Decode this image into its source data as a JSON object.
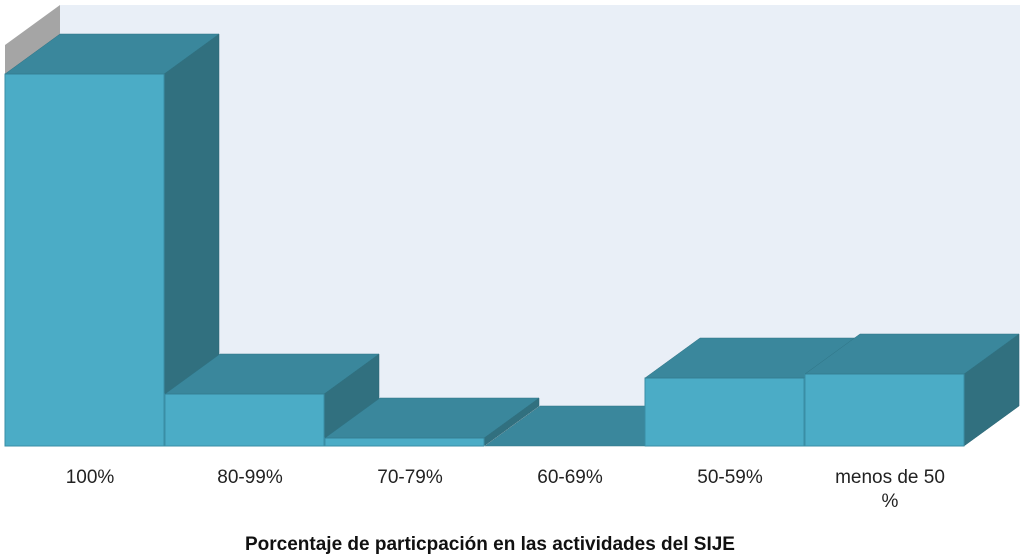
{
  "chart_data": {
    "type": "bar3d",
    "x_label": "Porcentaje de particpación  en las actividades del SIJE",
    "categories": [
      "100%",
      "80-99%",
      "70-79%",
      "60-69%",
      "50-59%",
      "menos de 50 %"
    ],
    "values": [
      372,
      52,
      8,
      0,
      68,
      72
    ],
    "color": "#4bacc6"
  }
}
